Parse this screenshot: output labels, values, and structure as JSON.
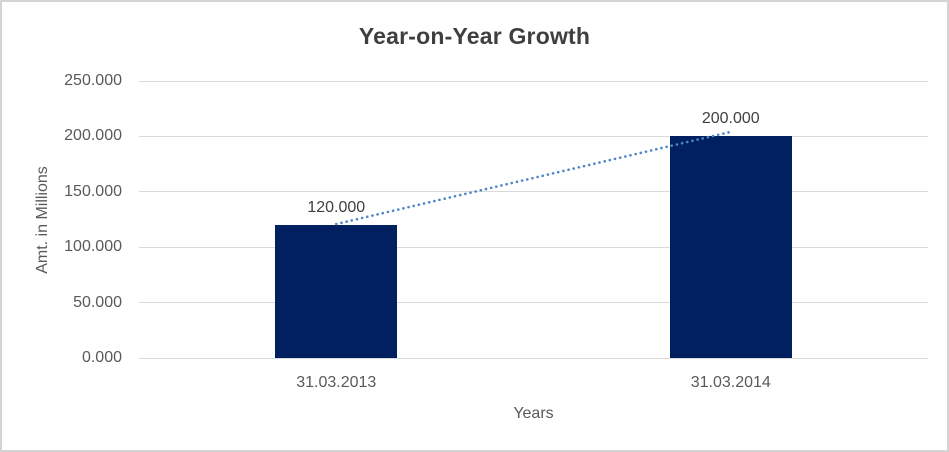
{
  "chart_data": {
    "type": "bar",
    "title": "Year-on-Year Growth",
    "xlabel": "Years",
    "ylabel": "Amt. in Millions",
    "categories": [
      "31.03.2013",
      "31.03.2014"
    ],
    "values": [
      120,
      200
    ],
    "value_labels": [
      "120.000",
      "200.000"
    ],
    "ylim": [
      0,
      250
    ],
    "y_ticks": [
      0,
      50,
      100,
      150,
      200,
      250
    ],
    "y_tick_labels": [
      "0.000",
      "50.000",
      "100.000",
      "150.000",
      "200.000",
      "250.000"
    ],
    "grid": true,
    "legend": "none",
    "trendline": {
      "style": "dotted",
      "between_values": [
        120,
        200
      ]
    },
    "colors": {
      "bar": "#002060",
      "trendline": "#4e86c6",
      "grid": "#d9d9d9",
      "title_text": "#3f3f3f",
      "axis_text": "#595959",
      "label_text": "#404040",
      "frame_border": "#d4d4d4",
      "background": "#ffffff"
    }
  }
}
